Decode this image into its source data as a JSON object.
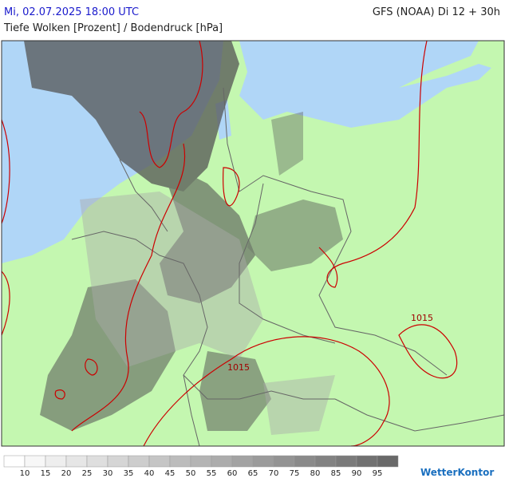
{
  "header": {
    "valid_time": "Mi, 02.07.2025 18:00 UTC",
    "model_run": "GFS (NOAA) Di 12 + 30h",
    "title": "Tiefe Wolken [Prozent] / Bodendruck [hPa]"
  },
  "map": {
    "isobar_labels": [
      "1015",
      "1015"
    ]
  },
  "legend": {
    "labels": [
      10,
      15,
      20,
      25,
      30,
      35,
      40,
      45,
      50,
      55,
      60,
      65,
      70,
      75,
      80,
      85,
      90,
      95
    ]
  },
  "brand": "WetterKontor"
}
